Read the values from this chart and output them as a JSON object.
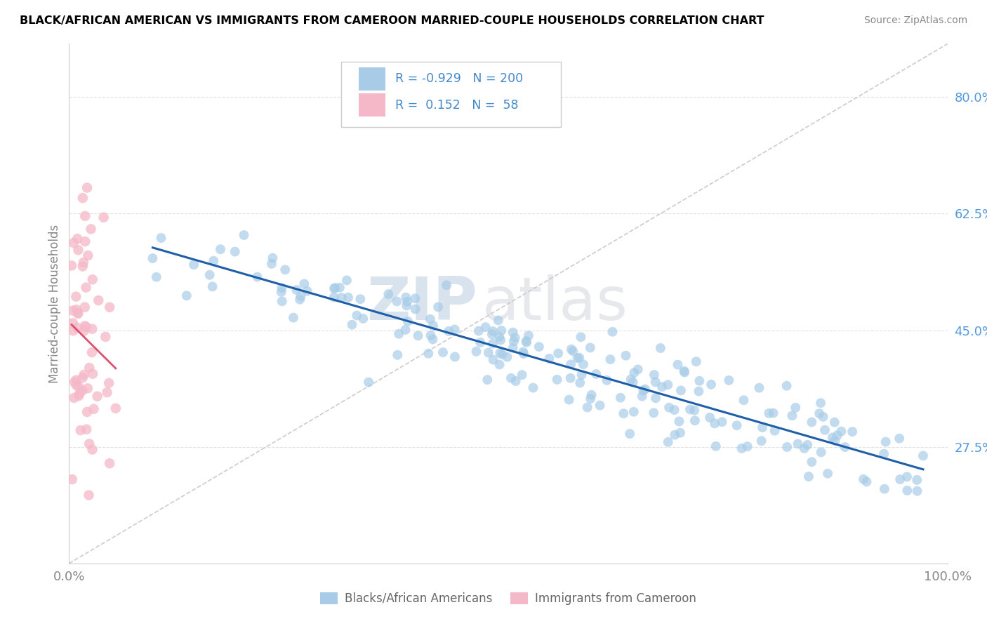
{
  "title": "BLACK/AFRICAN AMERICAN VS IMMIGRANTS FROM CAMEROON MARRIED-COUPLE HOUSEHOLDS CORRELATION CHART",
  "source": "Source: ZipAtlas.com",
  "ylabel": "Married-couple Households",
  "watermark_zip": "ZIP",
  "watermark_atlas": "atlas",
  "blue_R": -0.929,
  "blue_N": 200,
  "pink_R": 0.152,
  "pink_N": 58,
  "blue_color": "#a8cce8",
  "pink_color": "#f5b8c8",
  "blue_line_color": "#1e5fa8",
  "pink_line_color": "#e05070",
  "ref_line_color": "#cccccc",
  "xlim": [
    0.0,
    1.0
  ],
  "ylim": [
    0.1,
    0.88
  ],
  "yticks": [
    0.275,
    0.45,
    0.625,
    0.8
  ],
  "ytick_labels": [
    "27.5%",
    "45.0%",
    "62.5%",
    "80.0%"
  ],
  "xticks": [
    0.0,
    1.0
  ],
  "xtick_labels": [
    "0.0%",
    "100.0%"
  ],
  "legend_label_blue": "Blacks/African Americans",
  "legend_label_pink": "Immigrants from Cameroon",
  "grid_color": "#e0e0e0",
  "watermark_color": "#d0dff0",
  "watermark_atlas_color": "#c0c8d8"
}
